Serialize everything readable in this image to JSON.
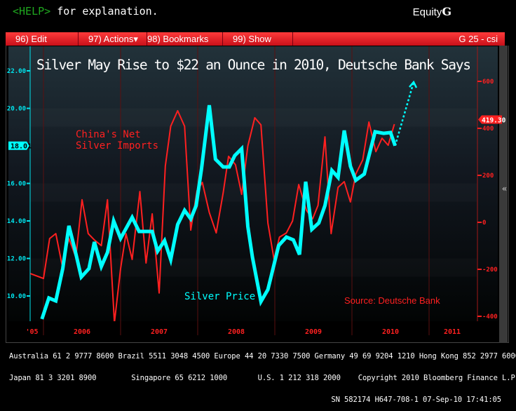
{
  "header": {
    "help_key": "<HELP>",
    "help_text": " for explanation.",
    "brand": "Equity",
    "brand_key": "G"
  },
  "menu": {
    "items": [
      "96) Edit",
      "97) Actions▾",
      "98) Bookmarks",
      "99) Show"
    ],
    "right": "G 25 - csi"
  },
  "footer": {
    "line1": "Australia 61 2 9777 8600 Brazil 5511 3048 4500 Europe 44 20 7330 7500 Germany 49 69 9204 1210 Hong Kong 852 2977 6000",
    "line2_left": "Japan 81 3 3201 8900        Singapore 65 6212 1000       U.S. 1 212 318 2000",
    "line2_right": "Copyright 2010 Bloomberg Finance L.P.",
    "line3": "SN 582174 H647-708-1 07-Sep-10 17:41:05"
  },
  "colors": {
    "silver": "#00ffff",
    "imports": "#ff2020",
    "axis_left": "#00e5ee",
    "axis_right": "#ff2020"
  },
  "chart_data": {
    "type": "line",
    "title": "Silver May Rise to $22 an Ounce in 2010, Deutsche Bank Says",
    "annotations": {
      "imports_label_1": "China's Net",
      "imports_label_2": "Silver Imports",
      "silver_label": "Silver Price",
      "source": "Source: Deutsche Bank"
    },
    "x_ticks": [
      "'05",
      "2006",
      "2007",
      "2008",
      "2009",
      "2010",
      "2011"
    ],
    "xlim": [
      2005.83,
      2011.6
    ],
    "left_axis": {
      "ylim": [
        8.6,
        22.8
      ],
      "ticks": [
        "10.00",
        "12.00",
        "14.00",
        "16.00",
        "20.00",
        "22.00"
      ],
      "tick_values": [
        10,
        12,
        14,
        16,
        20,
        22
      ],
      "last_value_label": "18.01",
      "last_value": 18.01
    },
    "right_axis": {
      "ylim": [
        -420,
        640
      ],
      "ticks": [
        "-400",
        "-200",
        "0",
        "200",
        "400",
        "600"
      ],
      "tick_values": [
        -400,
        -200,
        0,
        200,
        400,
        600
      ],
      "last_value_label": "419.30",
      "last_value": 419.3
    },
    "series": [
      {
        "name": "Silver Price",
        "axis": "left",
        "x": [
          2005.98,
          2006.07,
          2006.16,
          2006.25,
          2006.33,
          2006.41,
          2006.49,
          2006.59,
          2006.66,
          2006.75,
          2006.83,
          2006.91,
          2007.0,
          2007.15,
          2007.24,
          2007.41,
          2007.48,
          2007.57,
          2007.65,
          2007.74,
          2007.83,
          2007.91,
          2007.98,
          2008.05,
          2008.15,
          2008.23,
          2008.33,
          2008.41,
          2008.48,
          2008.57,
          2008.65,
          2008.71,
          2008.82,
          2008.91,
          2009.05,
          2009.15,
          2009.24,
          2009.32,
          2009.4,
          2009.48,
          2009.57,
          2009.65,
          2009.74,
          2009.82,
          2009.9,
          2009.98,
          2010.05,
          2010.16,
          2010.3,
          2010.41,
          2010.5,
          2010.56
        ],
        "y": [
          8.77,
          9.89,
          9.74,
          11.46,
          13.74,
          12.43,
          11.01,
          11.46,
          12.88,
          11.57,
          12.32,
          14.0,
          13.07,
          14.19,
          13.44,
          13.44,
          12.39,
          12.95,
          11.94,
          13.81,
          14.56,
          14.11,
          14.82,
          16.8,
          20.17,
          17.29,
          16.88,
          16.88,
          17.48,
          17.85,
          13.7,
          12.06,
          9.7,
          10.34,
          12.69,
          13.14,
          12.99,
          12.21,
          16.09,
          13.55,
          13.89,
          14.82,
          16.69,
          16.32,
          18.82,
          16.92,
          16.17,
          16.5,
          18.75,
          18.67,
          18.71,
          18.01
        ]
      },
      {
        "name": "Silver Price Forecast",
        "axis": "left",
        "style": "dotted-arrow",
        "x": [
          2010.56,
          2010.8
        ],
        "y": [
          18.01,
          21.4
        ]
      },
      {
        "name": "China's Net Silver Imports",
        "axis": "right",
        "x": [
          2005.83,
          2006.0,
          2006.08,
          2006.16,
          2006.24,
          2006.33,
          2006.42,
          2006.5,
          2006.58,
          2006.66,
          2006.75,
          2006.83,
          2006.92,
          2007.0,
          2007.07,
          2007.15,
          2007.25,
          2007.33,
          2007.41,
          2007.5,
          2007.58,
          2007.65,
          2007.74,
          2007.83,
          2007.91,
          2007.99,
          2008.06,
          2008.15,
          2008.24,
          2008.33,
          2008.4,
          2008.49,
          2008.57,
          2008.65,
          2008.74,
          2008.82,
          2008.91,
          2008.99,
          2009.06,
          2009.15,
          2009.23,
          2009.31,
          2009.41,
          2009.49,
          2009.56,
          2009.65,
          2009.73,
          2009.82,
          2009.9,
          2009.98,
          2010.05,
          2010.14,
          2010.22,
          2010.31,
          2010.39,
          2010.47,
          2010.55
        ],
        "y": [
          -218,
          -239,
          -69,
          -48,
          -179,
          -69,
          -149,
          96,
          -48,
          -75,
          -99,
          96,
          -427,
          -197,
          -48,
          -158,
          131,
          -173,
          36,
          -301,
          239,
          409,
          475,
          409,
          -33,
          134,
          170,
          42,
          -45,
          125,
          281,
          245,
          119,
          325,
          445,
          415,
          -3,
          -158,
          -63,
          -45,
          6,
          161,
          51,
          15,
          72,
          364,
          -48,
          149,
          173,
          87,
          206,
          266,
          427,
          301,
          358,
          328,
          418
        ]
      }
    ]
  }
}
